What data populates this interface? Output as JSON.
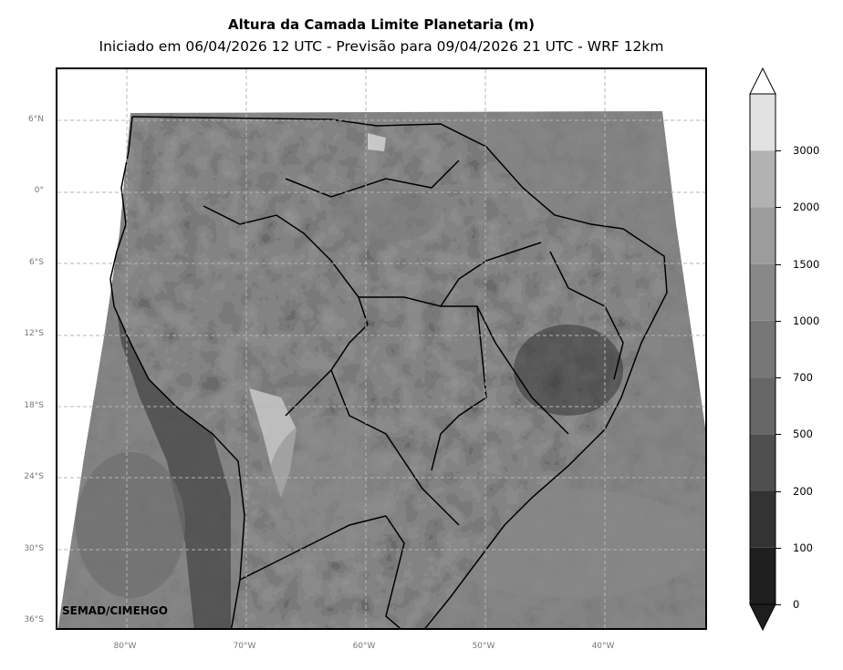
{
  "title": "Altura da Camada Limite Planetaria (m)",
  "subtitle": "Iniciado em 06/04/2026 12 UTC - Previsão para 09/04/2026 21 UTC - WRF 12km",
  "credit": "SEMAD/CIMEHGO",
  "latitude_labels": [
    "6°N",
    "0°",
    "6°S",
    "12°S",
    "18°S",
    "24°S",
    "30°S",
    "36°S"
  ],
  "longitude_labels": [
    "80°W",
    "70°W",
    "60°W",
    "50°W",
    "40°W"
  ],
  "colorbar": {
    "levels": [
      "0",
      "100",
      "200",
      "500",
      "700",
      "1000",
      "1500",
      "2000",
      "3000"
    ],
    "colors": [
      "#1e1e1e",
      "#333333",
      "#4f4f4f",
      "#666666",
      "#777777",
      "#888888",
      "#9c9c9c",
      "#b2b2b2",
      "#e2e2e2"
    ],
    "extend": "both"
  },
  "map": {
    "projection": "PlateCarree",
    "extent_lon": [
      -86,
      -32
    ],
    "extent_lat": [
      -37,
      10
    ],
    "grid": "dashed",
    "ocean_color": "#7a7a7a",
    "land_color": "#5a5a5a"
  }
}
